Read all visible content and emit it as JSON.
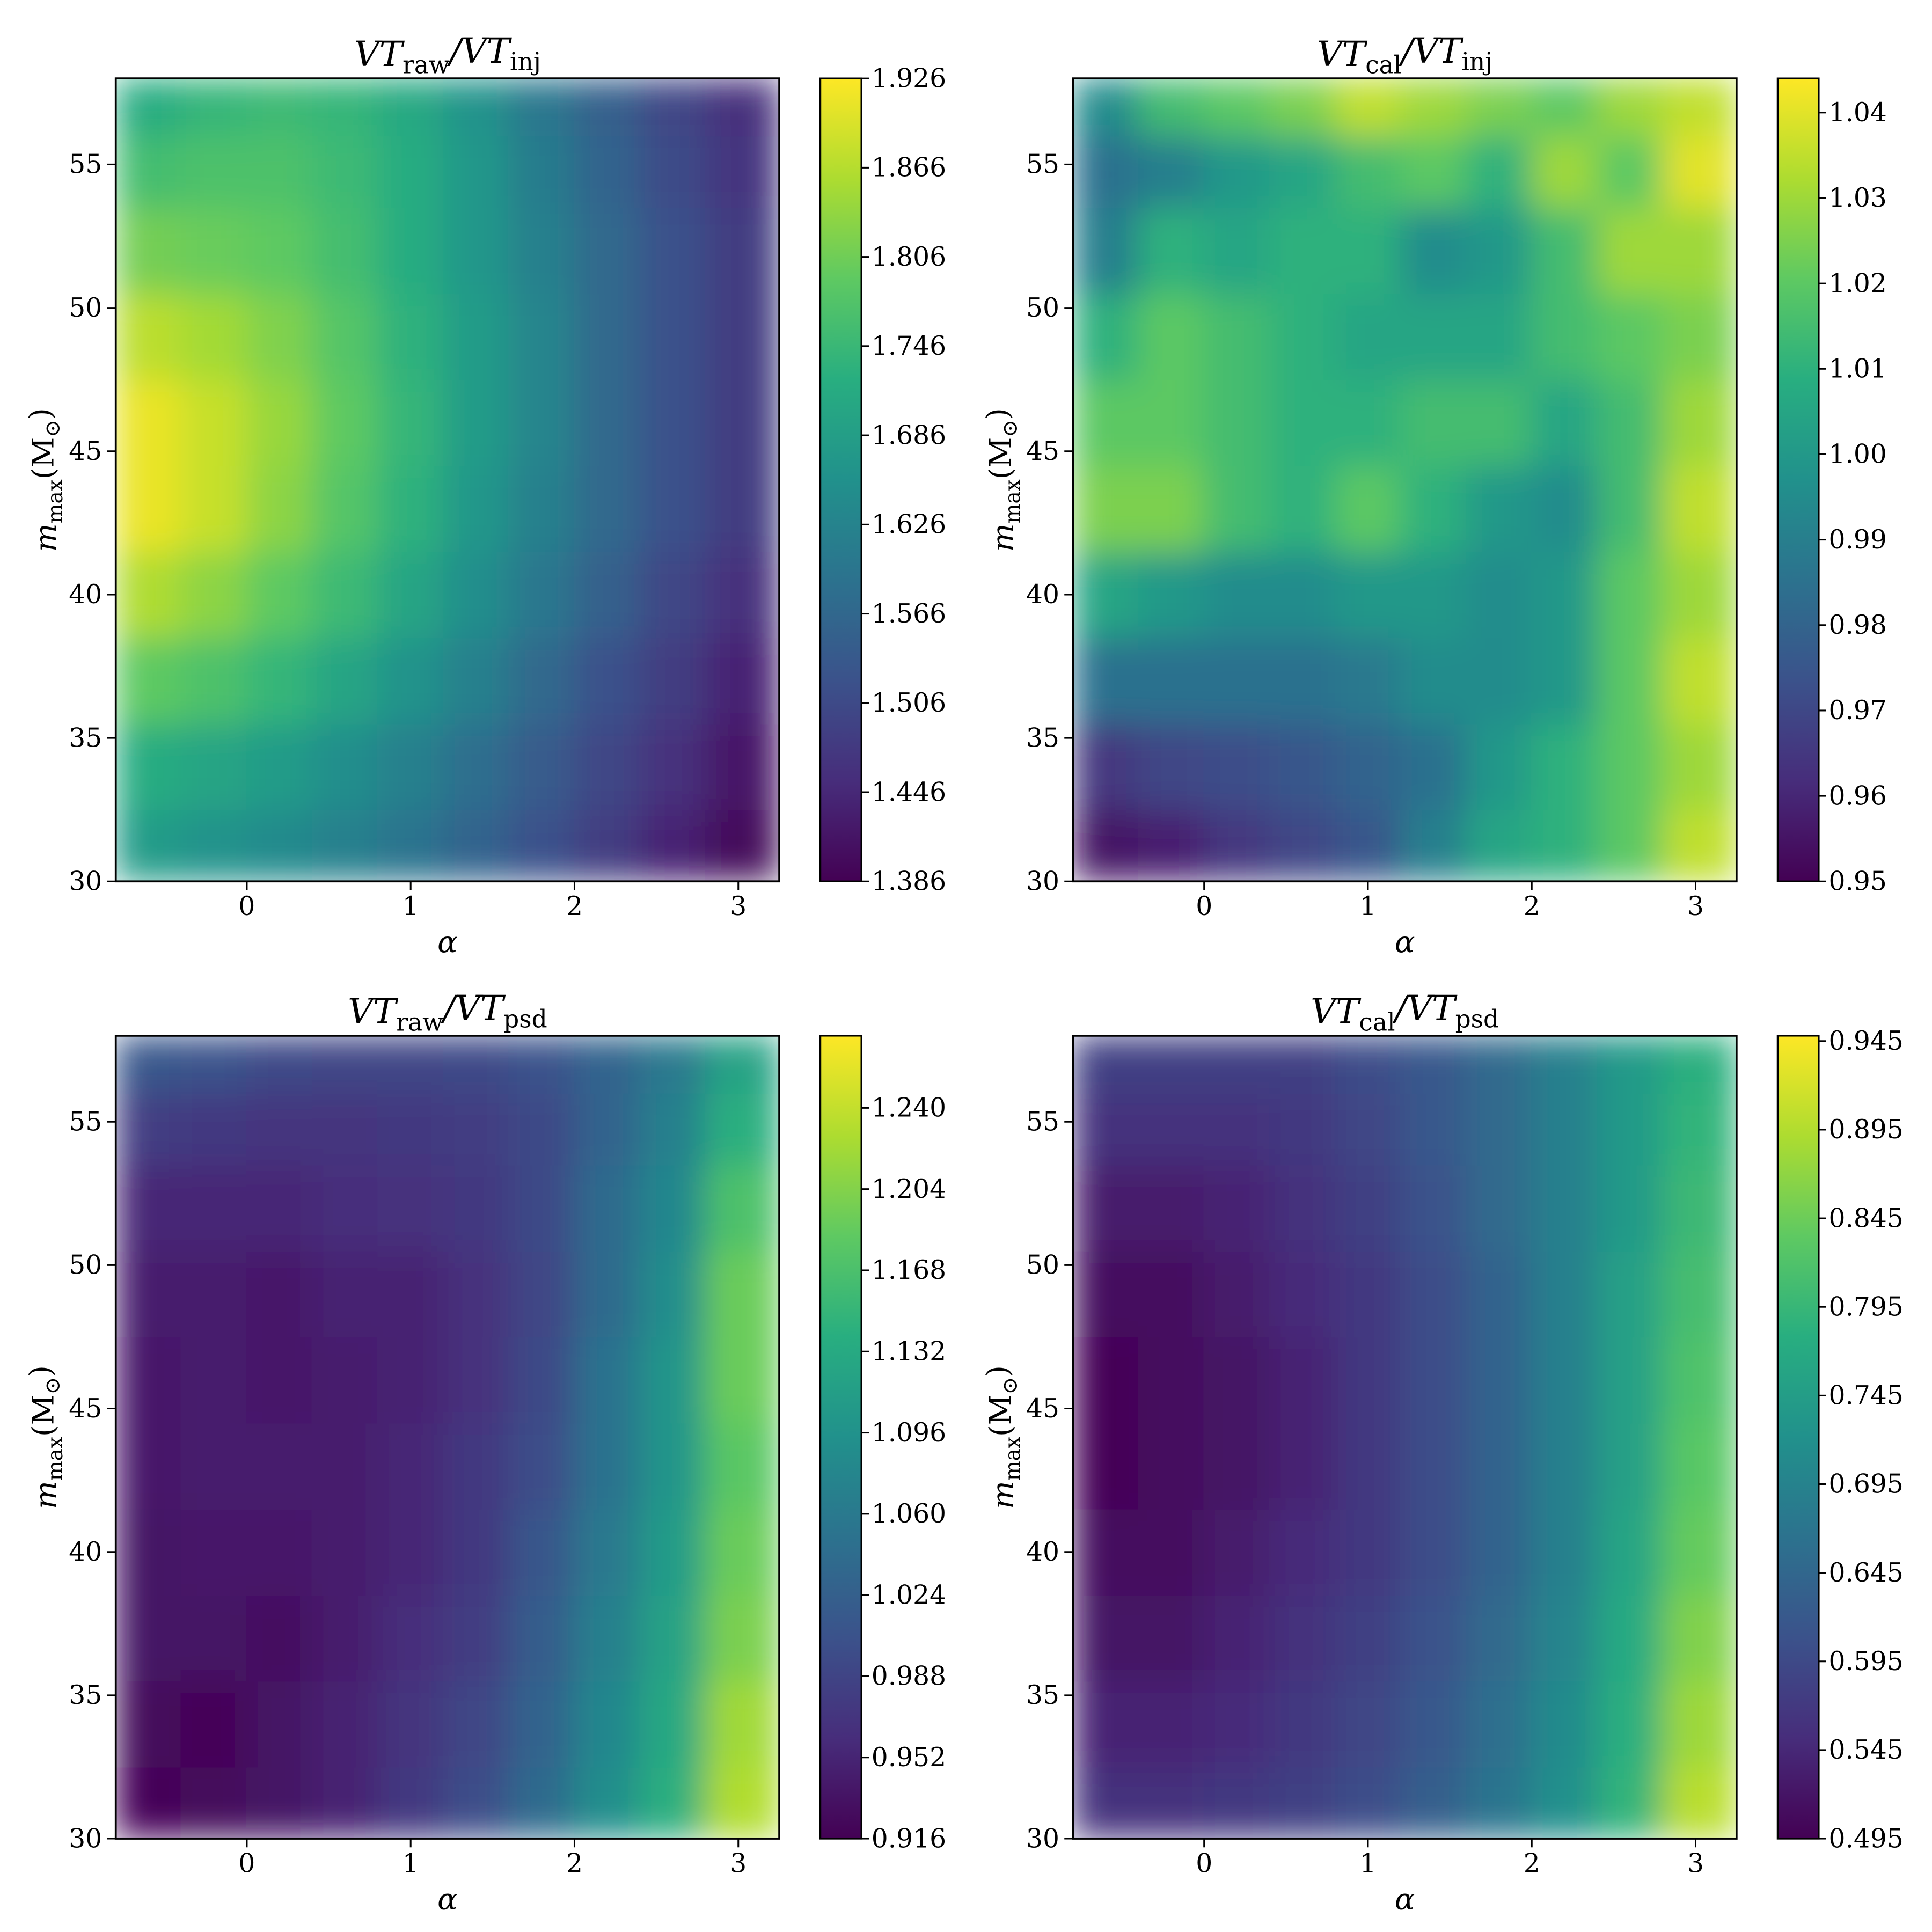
{
  "chart_data": [
    {
      "type": "heatmap",
      "title": [
        "VT",
        "raw",
        "/VT",
        "inj"
      ],
      "xlabel": "α",
      "ylabel": [
        "m",
        "max",
        "(M",
        "⊙",
        ")"
      ],
      "colormap": "viridis",
      "x": [
        -0.6,
        -0.2,
        0.2,
        0.6,
        1.0,
        1.4,
        1.8,
        2.2,
        2.6,
        3.0
      ],
      "y": [
        31,
        34,
        37,
        40,
        43,
        46,
        49,
        52,
        55,
        57
      ],
      "z": [
        [
          1.68,
          1.66,
          1.64,
          1.62,
          1.59,
          1.56,
          1.52,
          1.48,
          1.44,
          1.4
        ],
        [
          1.72,
          1.7,
          1.68,
          1.65,
          1.62,
          1.58,
          1.54,
          1.5,
          1.46,
          1.42
        ],
        [
          1.79,
          1.77,
          1.74,
          1.7,
          1.66,
          1.62,
          1.57,
          1.52,
          1.48,
          1.44
        ],
        [
          1.86,
          1.83,
          1.79,
          1.75,
          1.7,
          1.65,
          1.6,
          1.55,
          1.5,
          1.46
        ],
        [
          1.91,
          1.88,
          1.83,
          1.78,
          1.73,
          1.67,
          1.62,
          1.57,
          1.52,
          1.48
        ],
        [
          1.91,
          1.88,
          1.84,
          1.79,
          1.74,
          1.68,
          1.63,
          1.57,
          1.52,
          1.48
        ],
        [
          1.87,
          1.85,
          1.82,
          1.78,
          1.73,
          1.68,
          1.63,
          1.57,
          1.52,
          1.48
        ],
        [
          1.81,
          1.8,
          1.79,
          1.76,
          1.72,
          1.67,
          1.62,
          1.57,
          1.52,
          1.48
        ],
        [
          1.76,
          1.77,
          1.77,
          1.75,
          1.72,
          1.67,
          1.61,
          1.56,
          1.51,
          1.47
        ],
        [
          1.72,
          1.74,
          1.75,
          1.74,
          1.71,
          1.66,
          1.6,
          1.55,
          1.5,
          1.46
        ]
      ],
      "xlim": [
        -0.8,
        3.25
      ],
      "ylim": [
        30,
        58
      ],
      "xticks": [
        0,
        1,
        2,
        3
      ],
      "yticks": [
        30,
        35,
        40,
        45,
        50,
        55
      ],
      "zlim": [
        1.386,
        1.926
      ],
      "zticks": [
        1.386,
        1.446,
        1.506,
        1.566,
        1.626,
        1.686,
        1.746,
        1.806,
        1.866,
        1.926
      ]
    },
    {
      "type": "heatmap",
      "title": [
        "VT",
        "cal",
        "/VT",
        "inj"
      ],
      "xlabel": "α",
      "ylabel": [
        "m",
        "max",
        "(M",
        "⊙",
        ")"
      ],
      "colormap": "viridis",
      "x": [
        -0.6,
        -0.2,
        0.2,
        0.6,
        1.0,
        1.4,
        1.8,
        2.2,
        2.6,
        3.0
      ],
      "y": [
        31,
        34,
        37,
        40,
        43,
        46,
        49,
        52,
        55,
        57
      ],
      "z": [
        [
          0.955,
          0.958,
          0.965,
          0.97,
          0.975,
          0.99,
          1.005,
          1.01,
          1.02,
          1.035
        ],
        [
          0.965,
          0.97,
          0.972,
          0.975,
          0.98,
          0.985,
          1.0,
          1.01,
          1.02,
          1.03
        ],
        [
          0.985,
          0.985,
          0.985,
          0.985,
          0.988,
          0.995,
          0.995,
          1.0,
          1.02,
          1.035
        ],
        [
          1.005,
          1.0,
          0.995,
          0.995,
          1.0,
          1.0,
          0.995,
          1.0,
          1.02,
          1.03
        ],
        [
          1.025,
          1.025,
          1.015,
          1.01,
          1.02,
          1.01,
          1.0,
          0.995,
          1.015,
          1.035
        ],
        [
          1.02,
          1.02,
          1.015,
          1.01,
          1.01,
          1.015,
          1.015,
          1.005,
          1.015,
          1.03
        ],
        [
          1.01,
          1.02,
          1.015,
          1.01,
          1.005,
          1.005,
          1.005,
          1.015,
          1.02,
          1.025
        ],
        [
          0.99,
          1.01,
          1.005,
          1.01,
          1.01,
          0.995,
          1.0,
          1.015,
          1.03,
          1.03
        ],
        [
          0.985,
          0.99,
          1.0,
          1.005,
          1.015,
          1.02,
          1.01,
          1.03,
          1.02,
          1.04
        ],
        [
          0.995,
          1.015,
          1.02,
          1.025,
          1.035,
          1.03,
          1.025,
          1.02,
          1.03,
          1.035
        ]
      ],
      "xlim": [
        -0.8,
        3.25
      ],
      "ylim": [
        30,
        58
      ],
      "xticks": [
        0,
        1,
        2,
        3
      ],
      "yticks": [
        30,
        35,
        40,
        45,
        50,
        55
      ],
      "zlim": [
        0.95,
        1.044
      ],
      "zticks": [
        0.95,
        0.96,
        0.97,
        0.98,
        0.99,
        {
          "value": 1.0,
          "label": "1.00"
        },
        1.01,
        1.02,
        1.03,
        1.04
      ]
    },
    {
      "type": "heatmap",
      "title": [
        "VT",
        "raw",
        "/VT",
        "psd"
      ],
      "xlabel": "α",
      "ylabel": [
        "m",
        "max",
        "(M",
        "⊙",
        ")"
      ],
      "colormap": "viridis",
      "x": [
        -0.6,
        -0.2,
        0.2,
        0.6,
        1.0,
        1.4,
        1.8,
        2.2,
        2.6,
        3.0
      ],
      "y": [
        31,
        34,
        37,
        40,
        43,
        46,
        49,
        52,
        55,
        57
      ],
      "z": [
        [
          0.92,
          0.925,
          0.935,
          0.95,
          0.975,
          1.0,
          1.04,
          1.09,
          1.14,
          1.23
        ],
        [
          0.925,
          0.92,
          0.935,
          0.95,
          0.97,
          0.99,
          1.03,
          1.08,
          1.13,
          1.22
        ],
        [
          0.935,
          0.935,
          0.93,
          0.945,
          0.96,
          0.98,
          1.02,
          1.07,
          1.12,
          1.2
        ],
        [
          0.935,
          0.94,
          0.94,
          0.945,
          0.955,
          0.975,
          1.01,
          1.06,
          1.11,
          1.19
        ],
        [
          0.94,
          0.945,
          0.945,
          0.945,
          0.955,
          0.975,
          1.0,
          1.05,
          1.1,
          1.18
        ],
        [
          0.94,
          0.945,
          0.94,
          0.945,
          0.95,
          0.965,
          0.995,
          1.05,
          1.1,
          1.19
        ],
        [
          0.945,
          0.945,
          0.94,
          0.95,
          0.95,
          0.965,
          0.99,
          1.04,
          1.09,
          1.19
        ],
        [
          0.955,
          0.955,
          0.955,
          0.96,
          0.965,
          0.975,
          0.995,
          1.04,
          1.08,
          1.17
        ],
        [
          0.98,
          0.975,
          0.97,
          0.97,
          0.975,
          0.98,
          0.995,
          1.03,
          1.07,
          1.14
        ],
        [
          1.01,
          1.005,
          0.995,
          0.99,
          0.99,
          0.995,
          1.005,
          1.03,
          1.06,
          1.12
        ]
      ],
      "xlim": [
        -0.8,
        3.25
      ],
      "ylim": [
        30,
        58
      ],
      "xticks": [
        0,
        1,
        2,
        3
      ],
      "yticks": [
        30,
        35,
        40,
        45,
        50,
        55
      ],
      "zlim": [
        0.916,
        1.272
      ],
      "zticks": [
        0.916,
        0.952,
        0.988,
        1.024,
        {
          "value": 1.06,
          "label": "1.060"
        },
        1.096,
        1.132,
        1.168,
        1.204,
        {
          "value": 1.24,
          "label": "1.240"
        }
      ]
    },
    {
      "type": "heatmap",
      "title": [
        "VT",
        "cal",
        "/VT",
        "psd"
      ],
      "xlabel": "α",
      "ylabel": [
        "m",
        "max",
        "(M",
        "⊙",
        ")"
      ],
      "colormap": "viridis",
      "x": [
        -0.6,
        -0.2,
        0.2,
        0.6,
        1.0,
        1.4,
        1.8,
        2.2,
        2.6,
        3.0
      ],
      "y": [
        31,
        34,
        37,
        40,
        43,
        46,
        49,
        52,
        55,
        57
      ],
      "z": [
        [
          0.56,
          0.56,
          0.57,
          0.58,
          0.6,
          0.63,
          0.67,
          0.72,
          0.79,
          0.9
        ],
        [
          0.54,
          0.54,
          0.55,
          0.57,
          0.59,
          0.62,
          0.66,
          0.71,
          0.78,
          0.88
        ],
        [
          0.52,
          0.52,
          0.54,
          0.56,
          0.58,
          0.61,
          0.65,
          0.7,
          0.77,
          0.86
        ],
        [
          0.51,
          0.51,
          0.53,
          0.55,
          0.57,
          0.6,
          0.64,
          0.69,
          0.76,
          0.84
        ],
        [
          0.5,
          0.51,
          0.52,
          0.54,
          0.57,
          0.6,
          0.64,
          0.69,
          0.75,
          0.83
        ],
        [
          0.5,
          0.51,
          0.52,
          0.54,
          0.57,
          0.6,
          0.64,
          0.69,
          0.75,
          0.82
        ],
        [
          0.51,
          0.51,
          0.53,
          0.55,
          0.57,
          0.6,
          0.64,
          0.69,
          0.75,
          0.81
        ],
        [
          0.53,
          0.53,
          0.54,
          0.56,
          0.58,
          0.61,
          0.65,
          0.69,
          0.74,
          0.8
        ],
        [
          0.56,
          0.56,
          0.56,
          0.57,
          0.59,
          0.62,
          0.65,
          0.69,
          0.74,
          0.79
        ],
        [
          0.58,
          0.58,
          0.58,
          0.58,
          0.6,
          0.62,
          0.65,
          0.69,
          0.74,
          0.78
        ]
      ],
      "xlim": [
        -0.8,
        3.25
      ],
      "ylim": [
        30,
        58
      ],
      "xticks": [
        0,
        1,
        2,
        3
      ],
      "yticks": [
        30,
        35,
        40,
        45,
        50,
        55
      ],
      "zlim": [
        0.495,
        0.948
      ],
      "zticks": [
        0.495,
        0.545,
        0.595,
        0.645,
        0.695,
        0.745,
        0.795,
        0.845,
        0.895,
        0.945
      ]
    }
  ]
}
